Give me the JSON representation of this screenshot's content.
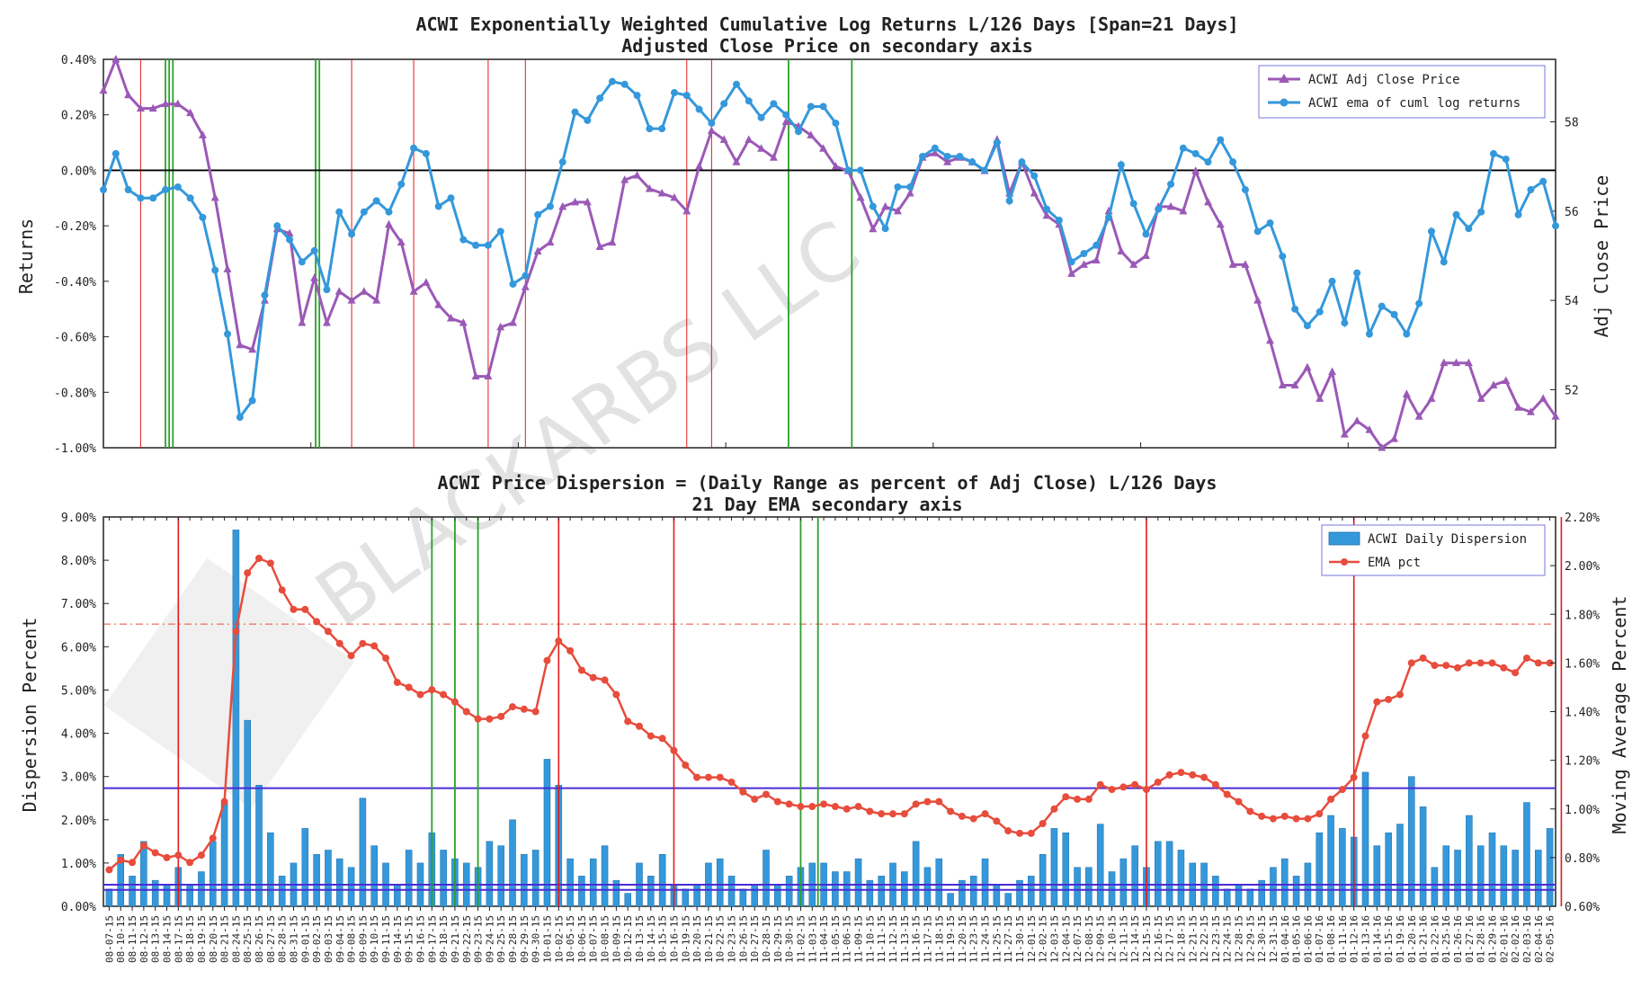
{
  "watermark": "BLACKARBS LLC",
  "colors": {
    "returns": "#3498db",
    "price": "#9b59b6",
    "bars": "#3498db",
    "ema": "#e74c3c",
    "green_vline": "#2ca02c",
    "red_vline": "#e31a1c",
    "blue_hline": "#4a2bd6"
  },
  "chart_data": [
    {
      "type": "line",
      "title": "ACWI Exponentially Weighted Cumulative Log Returns L/126 Days [Span=21 Days]",
      "subtitle": "Adjusted Close Price on secondary axis",
      "ylabel": "Returns",
      "y2label": "Adj Close Price",
      "ylim": [
        -1.0,
        0.4
      ],
      "y2lim": [
        50.7,
        59.4
      ],
      "yticks": [
        "0.40%",
        "0.20%",
        "0.00%",
        "-0.20%",
        "-0.40%",
        "-0.60%",
        "-0.80%",
        "-1.00%"
      ],
      "y2ticks": [
        "58",
        "56",
        "54",
        "52"
      ],
      "grid": false,
      "legend_position": "upper right",
      "hline_y": 0.0,
      "red_vlines": [
        3,
        20,
        25,
        31,
        34,
        47,
        49
      ],
      "green_vlines": [
        5,
        5.3,
        5.6,
        17.1,
        17.4,
        55.2,
        60.3
      ],
      "series": [
        {
          "name": "ACWI ema of cuml log returns",
          "y2": false,
          "values": [
            -0.07,
            0.06,
            -0.07,
            -0.1,
            -0.1,
            -0.07,
            -0.06,
            -0.1,
            -0.17,
            -0.36,
            -0.59,
            -0.89,
            -0.83,
            -0.45,
            -0.2,
            -0.25,
            -0.33,
            -0.29,
            -0.43,
            -0.15,
            -0.23,
            -0.15,
            -0.11,
            -0.15,
            -0.05,
            0.08,
            0.06,
            -0.13,
            -0.1,
            -0.25,
            -0.27,
            -0.27,
            -0.22,
            -0.41,
            -0.38,
            -0.16,
            -0.13,
            0.03,
            0.21,
            0.18,
            0.26,
            0.32,
            0.31,
            0.27,
            0.15,
            0.15,
            0.28,
            0.27,
            0.22,
            0.17,
            0.24,
            0.31,
            0.25,
            0.19,
            0.24,
            0.2,
            0.14,
            0.23,
            0.23,
            0.17,
            0.0,
            0.0,
            -0.13,
            -0.21,
            -0.06,
            -0.06,
            0.05,
            0.08,
            0.05,
            0.05,
            0.03,
            0.0,
            0.1,
            -0.11,
            0.03,
            -0.02,
            -0.14,
            -0.18,
            -0.33,
            -0.3,
            -0.27,
            -0.17,
            0.02,
            -0.12,
            -0.23,
            -0.14,
            -0.05,
            0.08,
            0.06,
            0.03,
            0.11,
            0.03,
            -0.07,
            -0.22,
            -0.19,
            -0.31,
            -0.5,
            -0.56,
            -0.51,
            -0.4,
            -0.55,
            -0.37,
            -0.59,
            -0.49,
            -0.52,
            -0.59,
            -0.48,
            -0.22,
            -0.33,
            -0.16,
            -0.21,
            -0.15,
            0.06,
            0.04,
            -0.16,
            -0.07,
            -0.04,
            -0.2
          ]
        },
        {
          "name": "ACWI Adj Close Price",
          "y2": true,
          "values": [
            58.7,
            59.4,
            58.6,
            58.3,
            58.3,
            58.4,
            58.4,
            58.2,
            57.7,
            56.3,
            54.7,
            53.0,
            52.9,
            54.0,
            55.6,
            55.5,
            53.5,
            54.5,
            53.5,
            54.2,
            54.0,
            54.2,
            54.0,
            55.7,
            55.3,
            54.2,
            54.4,
            53.9,
            53.6,
            53.5,
            52.3,
            52.3,
            53.4,
            53.5,
            54.3,
            55.1,
            55.3,
            56.1,
            56.2,
            56.2,
            55.2,
            55.3,
            56.7,
            56.8,
            56.5,
            56.4,
            56.3,
            56.0,
            57.0,
            57.8,
            57.6,
            57.1,
            57.6,
            57.4,
            57.2,
            58.0,
            57.9,
            57.7,
            57.4,
            57.0,
            56.9,
            56.3,
            55.6,
            56.1,
            56.0,
            56.4,
            57.2,
            57.3,
            57.1,
            57.2,
            57.1,
            56.9,
            57.6,
            56.4,
            57.1,
            56.4,
            55.9,
            55.7,
            54.6,
            54.8,
            54.9,
            56.0,
            55.1,
            54.8,
            55.0,
            56.1,
            56.1,
            56.0,
            56.9,
            56.2,
            55.7,
            54.8,
            54.8,
            54.0,
            53.1,
            52.1,
            52.1,
            52.5,
            51.8,
            52.4,
            51.0,
            51.3,
            51.1,
            50.7,
            50.9,
            51.9,
            51.4,
            51.8,
            52.6,
            52.6,
            52.6,
            51.8,
            52.1,
            52.2,
            51.6,
            51.5,
            51.8,
            51.4
          ]
        }
      ]
    },
    {
      "type": "bar",
      "title": "ACWI Price Dispersion = (Daily Range as percent of Adj Close) L/126 Days",
      "subtitle": "21 Day EMA secondary axis",
      "ylabel": "Dispersion Percent",
      "y2label": "Moving Average Percent",
      "ylim": [
        0.0,
        9.0
      ],
      "y2lim": [
        0.6,
        2.2
      ],
      "yticks": [
        "9.00%",
        "8.00%",
        "7.00%",
        "6.00%",
        "5.00%",
        "4.00%",
        "3.00%",
        "2.00%",
        "1.00%",
        "0.00%"
      ],
      "y2ticks": [
        "2.20%",
        "2.00%",
        "1.80%",
        "1.60%",
        "1.40%",
        "1.20%",
        "1.00%",
        "0.80%",
        "0.60%"
      ],
      "grid": false,
      "legend_position": "upper right",
      "hline_blue_y": [
        2.73,
        0.5,
        0.38
      ],
      "hline_red_dashdot_y2": 1.76,
      "red_vlines": [
        6,
        39,
        49,
        90,
        108,
        126,
        144,
        158
      ],
      "green_vlines": [
        28,
        30,
        32,
        60,
        61.5,
        168,
        172
      ],
      "categories": [
        "08-07-15",
        "08-10-15",
        "08-11-15",
        "08-12-15",
        "08-13-15",
        "08-14-15",
        "08-17-15",
        "08-18-15",
        "08-19-15",
        "08-20-15",
        "08-21-15",
        "08-24-15",
        "08-25-15",
        "08-26-15",
        "08-27-15",
        "08-28-15",
        "08-31-15",
        "09-01-15",
        "09-02-15",
        "09-03-15",
        "09-04-15",
        "09-08-15",
        "09-09-15",
        "09-10-15",
        "09-11-15",
        "09-14-15",
        "09-15-15",
        "09-16-15",
        "09-17-15",
        "09-18-15",
        "09-21-15",
        "09-22-15",
        "09-23-15",
        "09-24-15",
        "09-25-15",
        "09-28-15",
        "09-29-15",
        "09-30-15",
        "10-01-15",
        "10-02-15",
        "10-05-15",
        "10-06-15",
        "10-07-15",
        "10-08-15",
        "10-09-15",
        "10-12-15",
        "10-13-15",
        "10-14-15",
        "10-15-15",
        "10-16-15",
        "10-19-15",
        "10-20-15",
        "10-21-15",
        "10-22-15",
        "10-23-15",
        "10-26-15",
        "10-27-15",
        "10-28-15",
        "10-29-15",
        "10-30-15",
        "11-02-15",
        "11-03-15",
        "11-04-15",
        "11-05-15",
        "11-06-15",
        "11-09-15",
        "11-10-15",
        "11-11-15",
        "11-12-15",
        "11-13-15",
        "11-16-15",
        "11-17-15",
        "11-18-15",
        "11-19-15",
        "11-20-15",
        "11-23-15",
        "11-24-15",
        "11-25-15",
        "11-27-15",
        "11-30-15",
        "12-01-15",
        "12-02-15",
        "12-03-15",
        "12-04-15",
        "12-07-15",
        "12-08-15",
        "12-09-15",
        "12-10-15",
        "12-11-15",
        "12-14-15",
        "12-15-15",
        "12-16-15",
        "12-17-15",
        "12-18-15",
        "12-21-15",
        "12-22-15",
        "12-23-15",
        "12-24-15",
        "12-28-15",
        "12-29-15",
        "12-30-15",
        "12-31-15",
        "01-04-16",
        "01-05-16",
        "01-06-16",
        "01-07-16",
        "01-08-16",
        "01-11-16",
        "01-12-16",
        "01-13-16",
        "01-14-16",
        "01-15-16",
        "01-19-16",
        "01-20-16",
        "01-21-16",
        "01-22-16",
        "01-25-16",
        "01-26-16",
        "01-27-16",
        "01-28-16",
        "01-29-16",
        "02-01-16",
        "02-02-16",
        "02-03-16",
        "02-04-16",
        "02-05-16"
      ],
      "series": [
        {
          "name": "ACWI Daily Dispersion",
          "type": "bar",
          "values": [
            0.4,
            1.2,
            0.7,
            1.5,
            0.6,
            0.5,
            0.9,
            0.5,
            0.8,
            1.5,
            2.4,
            8.7,
            4.3,
            2.8,
            1.7,
            0.7,
            1.0,
            1.8,
            1.2,
            1.3,
            1.1,
            0.9,
            2.5,
            1.4,
            1.0,
            0.5,
            1.3,
            1.0,
            1.7,
            1.3,
            1.1,
            1.0,
            0.9,
            1.5,
            1.4,
            2.0,
            1.2,
            1.3,
            3.4,
            2.8,
            1.1,
            0.7,
            1.1,
            1.4,
            0.6,
            0.3,
            1.0,
            0.7,
            1.2,
            0.5,
            0.4,
            0.5,
            1.0,
            1.1,
            0.7,
            0.4,
            0.5,
            1.3,
            0.5,
            0.7,
            0.9,
            1.0,
            1.0,
            0.8,
            0.8,
            1.1,
            0.6,
            0.7,
            1.0,
            0.8,
            1.5,
            0.9,
            1.1,
            0.3,
            0.6,
            0.7,
            1.1,
            0.5,
            0.3,
            0.6,
            0.7,
            1.2,
            1.8,
            1.7,
            0.9,
            0.9,
            1.9,
            0.8,
            1.1,
            1.4,
            0.9,
            1.5,
            1.5,
            1.3,
            1.0,
            1.0,
            0.7,
            0.4,
            0.5,
            0.4,
            0.6,
            0.9,
            1.1,
            0.7,
            1.0,
            1.7,
            2.1,
            1.8,
            1.6,
            3.1,
            1.4,
            1.7,
            1.9,
            3.0,
            2.3,
            0.9,
            1.4,
            1.3,
            2.1,
            1.4,
            1.7,
            1.4,
            1.3,
            2.4,
            1.3,
            1.8
          ]
        },
        {
          "name": "EMA pct",
          "type": "line",
          "y2": true,
          "values": [
            0.75,
            0.79,
            0.78,
            0.85,
            0.82,
            0.8,
            0.81,
            0.78,
            0.81,
            0.88,
            1.03,
            1.73,
            1.97,
            2.03,
            2.01,
            1.9,
            1.82,
            1.82,
            1.77,
            1.73,
            1.68,
            1.63,
            1.68,
            1.67,
            1.62,
            1.52,
            1.5,
            1.47,
            1.49,
            1.47,
            1.44,
            1.4,
            1.37,
            1.37,
            1.38,
            1.42,
            1.41,
            1.4,
            1.61,
            1.69,
            1.65,
            1.57,
            1.54,
            1.53,
            1.47,
            1.36,
            1.34,
            1.3,
            1.29,
            1.24,
            1.18,
            1.13,
            1.13,
            1.13,
            1.11,
            1.07,
            1.04,
            1.06,
            1.03,
            1.02,
            1.01,
            1.01,
            1.02,
            1.01,
            1.0,
            1.01,
            0.99,
            0.98,
            0.98,
            0.98,
            1.02,
            1.03,
            1.03,
            0.99,
            0.97,
            0.96,
            0.98,
            0.95,
            0.91,
            0.9,
            0.9,
            0.94,
            1.0,
            1.05,
            1.04,
            1.04,
            1.1,
            1.08,
            1.09,
            1.1,
            1.08,
            1.11,
            1.14,
            1.15,
            1.14,
            1.13,
            1.1,
            1.06,
            1.03,
            0.99,
            0.97,
            0.96,
            0.97,
            0.96,
            0.96,
            0.98,
            1.04,
            1.08,
            1.13,
            1.3,
            1.44,
            1.45,
            1.47,
            1.6,
            1.62,
            1.59,
            1.59,
            1.58,
            1.6,
            1.6,
            1.6,
            1.58,
            1.56,
            1.62,
            1.6,
            1.6
          ]
        }
      ]
    }
  ]
}
